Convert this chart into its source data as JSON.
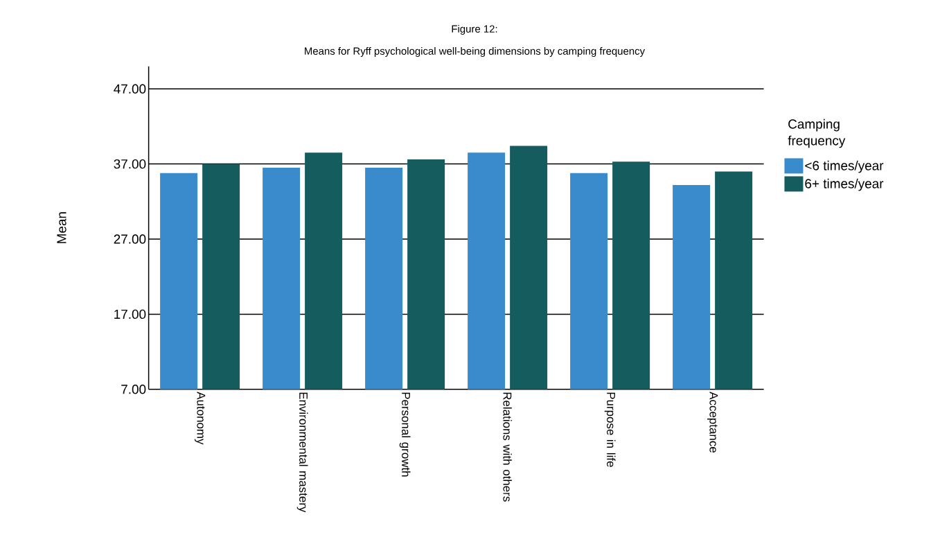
{
  "chart_data": {
    "type": "bar",
    "title": "Figure 12:",
    "subtitle": "Means for Ryff psychological well-being dimensions by camping frequency",
    "ylabel": "Mean",
    "legend_title": "Camping frequency",
    "legend": "right",
    "grid": "y",
    "categories": [
      "Autonomy",
      "Environmental mastery",
      "Personal growth",
      "Relations with others",
      "Purpose in life",
      "Acceptance"
    ],
    "series": [
      {
        "name": "<6 times/year",
        "color": "#3a8bcc",
        "values": [
          35.8,
          36.5,
          36.5,
          38.5,
          35.8,
          34.2
        ]
      },
      {
        "name": "6+ times/year",
        "color": "#145c5e",
        "values": [
          37.0,
          38.5,
          37.6,
          39.4,
          37.3,
          36.0
        ]
      }
    ],
    "ylim": [
      7,
      50
    ],
    "yticks": [
      {
        "value": 7,
        "label": "7.00"
      },
      {
        "value": 17,
        "label": "17.00"
      },
      {
        "value": 27,
        "label": "27.00"
      },
      {
        "value": 37,
        "label": "37.00"
      },
      {
        "value": 47,
        "label": "47.00"
      }
    ]
  }
}
